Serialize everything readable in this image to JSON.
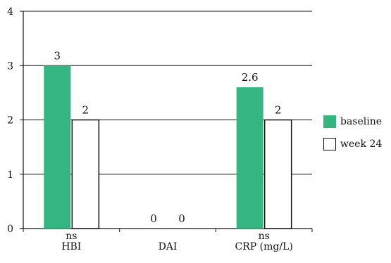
{
  "chart_data": {
    "type": "bar",
    "categories": [
      "HBI",
      "DAI",
      "CRP (mg/L)"
    ],
    "category_annotations": [
      "ns",
      "",
      "ns"
    ],
    "series": [
      {
        "name": "baseline",
        "values": [
          3,
          0,
          2.6
        ],
        "color": "#35b57f",
        "style": "filled"
      },
      {
        "name": "week 24",
        "values": [
          2,
          0,
          2
        ],
        "color": "#ffffff",
        "style": "outline"
      }
    ],
    "data_labels": [
      [
        "3",
        "0",
        "2.6"
      ],
      [
        "2",
        "0",
        "2"
      ]
    ],
    "yticks": [
      0,
      1,
      2,
      3,
      4
    ],
    "ylim": [
      0,
      4
    ],
    "grid": true,
    "legend_position": "right"
  }
}
